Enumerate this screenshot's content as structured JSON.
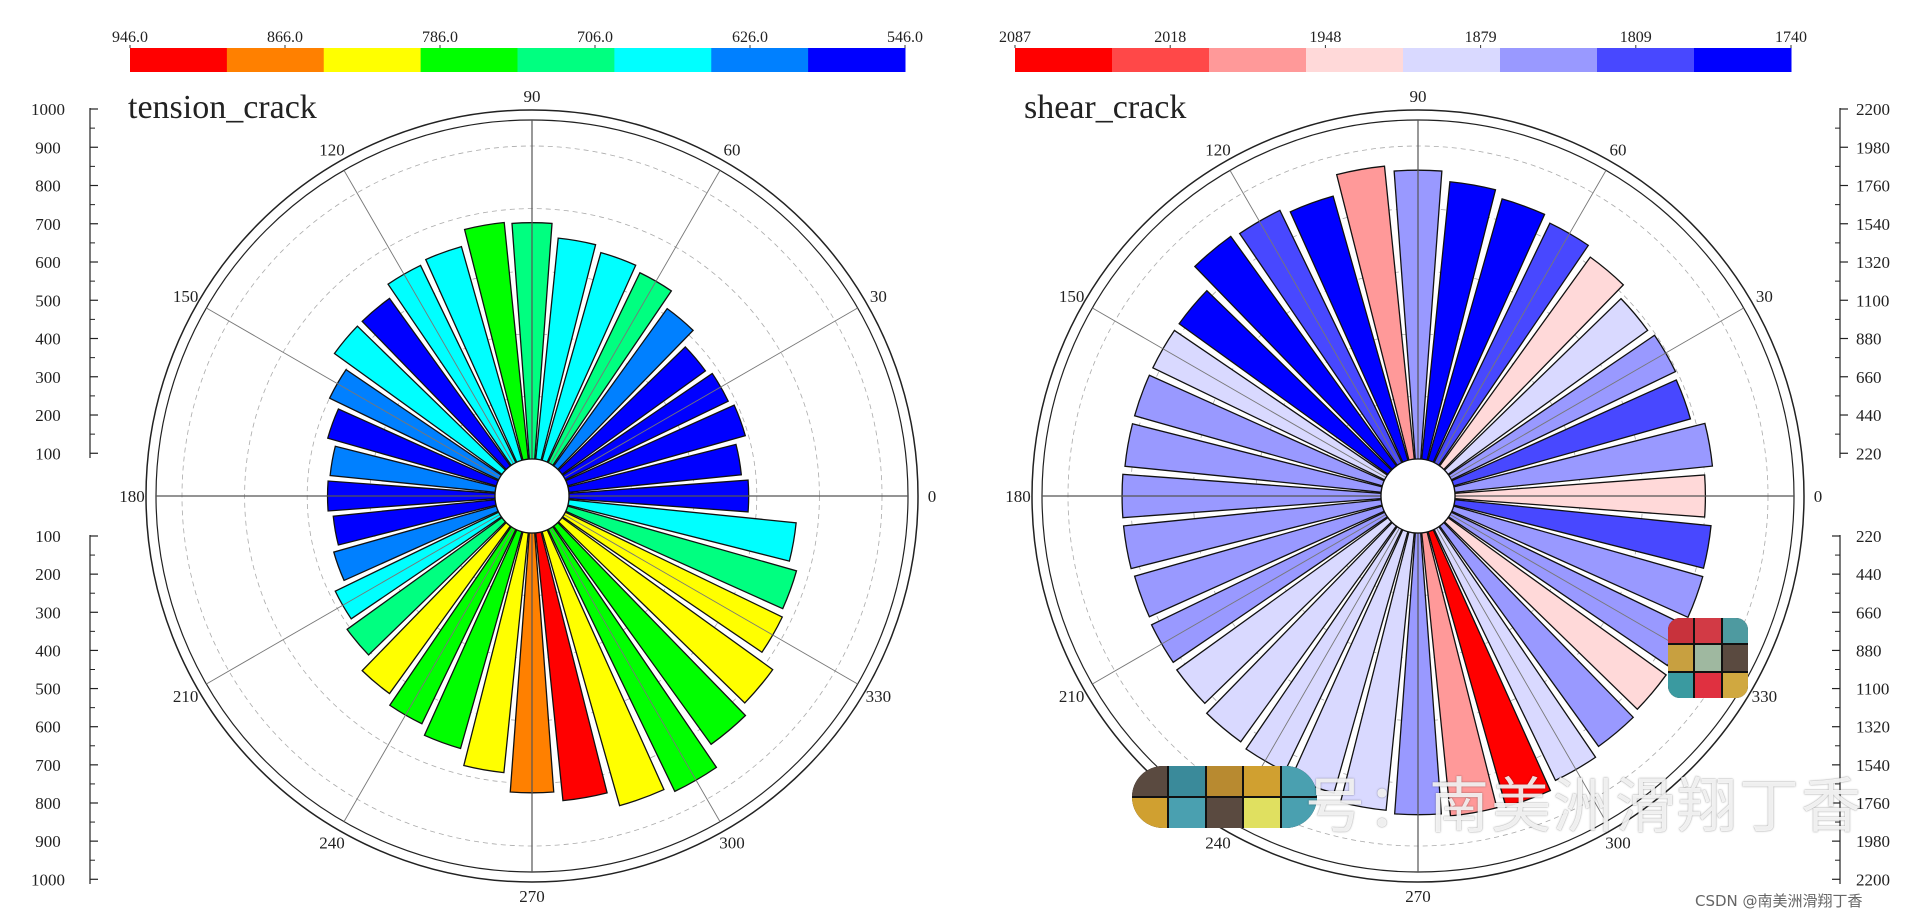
{
  "chart_data": [
    {
      "type": "rose",
      "title": "tension_crack",
      "angle_ticks": [
        "0",
        "30",
        "60",
        "90",
        "120",
        "150",
        "180",
        "210",
        "240",
        "270",
        "300",
        "330"
      ],
      "radial_axis_upper": [
        "1000",
        "900",
        "800",
        "700",
        "600",
        "500",
        "400",
        "300",
        "200",
        "100"
      ],
      "radial_axis_lower": [
        "100",
        "200",
        "300",
        "400",
        "500",
        "600",
        "700",
        "800",
        "900",
        "1000"
      ],
      "radial_max": 1000,
      "colorbar": {
        "ticks": [
          "946.0",
          "866.0",
          "786.0",
          "706.0",
          "626.0",
          "546.0"
        ],
        "colors": [
          "#ff0000",
          "#ff8000",
          "#ffff00",
          "#00ff00",
          "#00ff80",
          "#00ffff",
          "#0080ff",
          "#0000ff"
        ]
      },
      "bin_width_deg": 10,
      "values": [
        574,
        554,
        590,
        578,
        565,
        620,
        674,
        690,
        710,
        755,
        760,
        710,
        700,
        660,
        660,
        600,
        560,
        530,
        535,
        520,
        540,
        580,
        610,
        660,
        690,
        720,
        770,
        830,
        860,
        910,
        930,
        860,
        830,
        770,
        760,
        730
      ],
      "colors": [
        "#0000ff",
        "#0000ff",
        "#0000ff",
        "#0000ff",
        "#0000ff",
        "#0080ff",
        "#00ff80",
        "#00ffff",
        "#00ffff",
        "#00ff80",
        "#00ff00",
        "#00ffff",
        "#00ffff",
        "#0000ff",
        "#00ffff",
        "#0080ff",
        "#0000ff",
        "#0080ff",
        "#0000ff",
        "#0000ff",
        "#0080ff",
        "#00ffff",
        "#00ff80",
        "#ffff00",
        "#00ff00",
        "#00ff00",
        "#ffff00",
        "#ff8000",
        "#ff0000",
        "#ffff00",
        "#00ff00",
        "#00ff00",
        "#ffff00",
        "#ffff00",
        "#00ff80",
        "#00ffff"
      ]
    },
    {
      "type": "rose",
      "title": "shear_crack",
      "angle_ticks": [
        "0",
        "30",
        "60",
        "90",
        "120",
        "150",
        "180",
        "210",
        "240",
        "270",
        "300",
        "330"
      ],
      "radial_axis_upper": [
        "2200",
        "1980",
        "1760",
        "1540",
        "1320",
        "1100",
        "880",
        "660",
        "440",
        "220"
      ],
      "radial_axis_lower": [
        "220",
        "440",
        "660",
        "880",
        "1100",
        "1320",
        "1540",
        "1760",
        "1980",
        "2200"
      ],
      "radial_max": 2200,
      "colorbar": {
        "ticks": [
          "2087",
          "2018",
          "1948",
          "1879",
          "1809",
          "1740"
        ],
        "colors": [
          "#ff0000",
          "#ff4848",
          "#ff9999",
          "#ffd9d9",
          "#d9d9ff",
          "#9999ff",
          "#4848ff",
          "#0000ff"
        ]
      },
      "bin_width_deg": 10,
      "values": [
        1760,
        1820,
        1730,
        1750,
        1730,
        1810,
        1870,
        1910,
        1960,
        2030,
        2070,
        1930,
        1970,
        1990,
        1810,
        1810,
        1810,
        1810,
        1820,
        1820,
        1810,
        1820,
        1830,
        1870,
        1890,
        1910,
        1960,
        1980,
        2000,
        2010,
        1960,
        1910,
        1890,
        1860,
        1820,
        1810
      ],
      "colors": [
        "#ffd9d9",
        "#9999ff",
        "#4848ff",
        "#9999ff",
        "#d9d9ff",
        "#ffd9d9",
        "#4848ff",
        "#0000ff",
        "#0000ff",
        "#9999ff",
        "#ff9999",
        "#0000ff",
        "#4848ff",
        "#0000ff",
        "#0000ff",
        "#d9d9ff",
        "#9999ff",
        "#9999ff",
        "#9999ff",
        "#9999ff",
        "#9999ff",
        "#9999ff",
        "#d9d9ff",
        "#d9d9ff",
        "#d9d9ff",
        "#d9d9ff",
        "#d9d9ff",
        "#9999ff",
        "#ff9999",
        "#ff0000",
        "#d9d9ff",
        "#9999ff",
        "#ffd9d9",
        "#9999ff",
        "#9999ff",
        "#4848ff"
      ]
    }
  ],
  "watermark": {
    "text": "号：南美洲滑翔丁香",
    "csdn": "CSDN @南美洲滑翔丁香"
  }
}
